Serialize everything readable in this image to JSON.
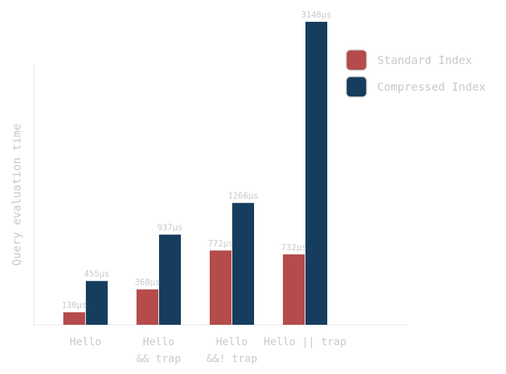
{
  "chart_data": {
    "type": "bar",
    "ylabel": "Query evaluation time",
    "categories": [
      [
        "Hello"
      ],
      [
        "Hello",
        "&& trap"
      ],
      [
        "Hello",
        "&&! trap"
      ],
      [
        "Hello || trap"
      ]
    ],
    "series": [
      {
        "name": "Standard Index",
        "color": "#b54b4b",
        "values": [
          130,
          368,
          772,
          732
        ],
        "labels": [
          "130μs",
          "368μs",
          "772μs",
          "732μs"
        ]
      },
      {
        "name": "Compressed Index",
        "color": "#163d5e",
        "values": [
          455,
          937,
          1266,
          3148
        ],
        "labels": [
          "455μs",
          "937μs",
          "1266μs",
          "3148μs"
        ]
      }
    ],
    "ylim": [
      0,
      3660
    ],
    "grid": false,
    "legend": "top-right"
  }
}
